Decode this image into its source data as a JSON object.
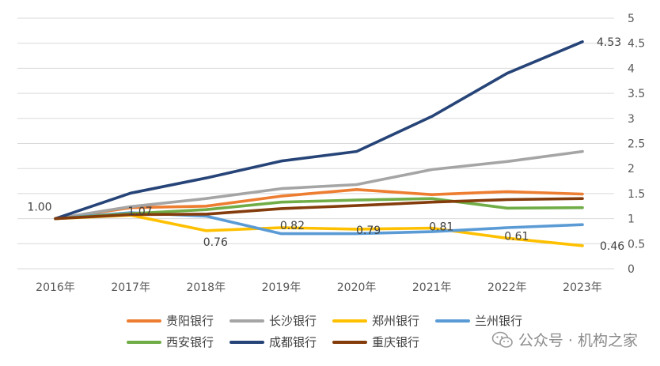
{
  "chart_data": {
    "type": "line",
    "title": "",
    "xlabel": "",
    "ylabel": "",
    "categories": [
      "2016年",
      "2017年",
      "2018年",
      "2019年",
      "2020年",
      "2021年",
      "2022年",
      "2023年"
    ],
    "y_axis_side": "right",
    "ylim": [
      0,
      5
    ],
    "yticks": [
      "0",
      "0.5",
      "1",
      "1.5",
      "2",
      "2.5",
      "3",
      "3.5",
      "4",
      "4.5",
      "5"
    ],
    "ytick_values": [
      0,
      0.5,
      1,
      1.5,
      2,
      2.5,
      3,
      3.5,
      4,
      4.5,
      5
    ],
    "grid": true,
    "legend_position": "bottom",
    "series": [
      {
        "name": "贵阳银行",
        "color": "#ED7D31",
        "values": [
          1.0,
          1.22,
          1.25,
          1.45,
          1.58,
          1.48,
          1.54,
          1.49
        ]
      },
      {
        "name": "长沙银行",
        "color": "#A5A5A5",
        "values": [
          1.0,
          1.24,
          1.4,
          1.6,
          1.68,
          1.98,
          2.14,
          2.34
        ]
      },
      {
        "name": "郑州银行",
        "color": "#FFC000",
        "values": [
          1.0,
          1.07,
          0.76,
          0.82,
          0.79,
          0.81,
          0.61,
          0.46
        ]
      },
      {
        "name": "兰州银行",
        "color": "#5B9BD5",
        "values": [
          1.0,
          1.12,
          1.05,
          0.7,
          0.7,
          0.74,
          0.82,
          0.88
        ]
      },
      {
        "name": "西安银行",
        "color": "#70AD47",
        "values": [
          1.0,
          1.1,
          1.18,
          1.33,
          1.37,
          1.4,
          1.21,
          1.22
        ]
      },
      {
        "name": "成都银行",
        "color": "#264478",
        "values": [
          1.0,
          1.51,
          1.81,
          2.15,
          2.34,
          3.04,
          3.9,
          4.53
        ]
      },
      {
        "name": "重庆银行",
        "color": "#843C0C",
        "values": [
          1.0,
          1.08,
          1.09,
          1.2,
          1.26,
          1.33,
          1.38,
          1.4
        ]
      }
    ],
    "annotations": [
      {
        "text": "1.00",
        "series": 0,
        "index": 0
      },
      {
        "text": "1.07",
        "series": 2,
        "index": 1
      },
      {
        "text": "0.76",
        "series": 2,
        "index": 2
      },
      {
        "text": "0.82",
        "series": 2,
        "index": 3
      },
      {
        "text": "0.79",
        "series": 2,
        "index": 4
      },
      {
        "text": "0.81",
        "series": 2,
        "index": 5
      },
      {
        "text": "0.61",
        "series": 2,
        "index": 6
      },
      {
        "text": "0.46",
        "series": 2,
        "index": 7
      },
      {
        "text": "4.53",
        "series": 5,
        "index": 7
      }
    ]
  },
  "legend": {
    "rows": [
      [
        "贵阳银行",
        "长沙银行",
        "郑州银行",
        "兰州银行"
      ],
      [
        "西安银行",
        "成都银行",
        "重庆银行"
      ]
    ]
  },
  "watermark": {
    "text": "公众号 · 机构之家",
    "icon": "wechat-icon"
  }
}
